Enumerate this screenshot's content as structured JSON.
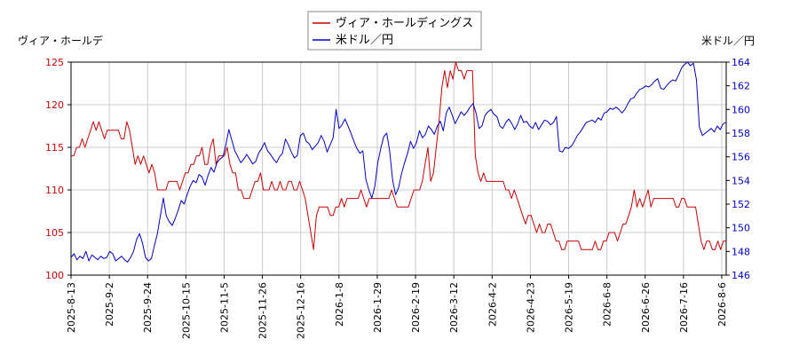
{
  "chart_data": {
    "type": "line",
    "left_axis_label": "ヴィア・ホールデ",
    "right_axis_label": "米ドル／円",
    "x_tick_labels": [
      "2025-8-13",
      "2025-9-2",
      "2025-9-24",
      "2025-10-15",
      "2025-11-5",
      "2025-11-26",
      "2025-12-16",
      "2026-1-8",
      "2026-1-29",
      "2026-2-19",
      "2026-3-12",
      "2026-4-2",
      "2026-4-23",
      "2026-5-19",
      "2026-6-8",
      "2026-6-26",
      "2026-7-16",
      "2026-8-6"
    ],
    "y_left": {
      "min": 100,
      "max": 125,
      "ticks": [
        100,
        105,
        110,
        115,
        120,
        125
      ]
    },
    "y_right": {
      "min": 146,
      "max": 164,
      "ticks": [
        146,
        148,
        150,
        152,
        154,
        156,
        158,
        160,
        162,
        164
      ]
    },
    "grid": true,
    "legend_position": "top-center",
    "series": [
      {
        "name": "ヴィア・ホールディングス",
        "color": "#cc0000",
        "axis": "left",
        "values": [
          114,
          114,
          115,
          115,
          116,
          115,
          116,
          117,
          118,
          117,
          118,
          117,
          116,
          117,
          117,
          117,
          117,
          117,
          116,
          116,
          118,
          117,
          115,
          113,
          114,
          113,
          114,
          113,
          112,
          113,
          112,
          110,
          110,
          110,
          110,
          111,
          111,
          111,
          111,
          110,
          111,
          112,
          112,
          113,
          113,
          114,
          114,
          115,
          113,
          113,
          115,
          116,
          113,
          114,
          114,
          114,
          115,
          113,
          112,
          112,
          110,
          110,
          109,
          109,
          109,
          110,
          111,
          111,
          112,
          110,
          110,
          110,
          111,
          110,
          110,
          111,
          110,
          110,
          111,
          111,
          110,
          110,
          111,
          110,
          109,
          107,
          105,
          103,
          107,
          108,
          108,
          108,
          108,
          107,
          107,
          108,
          108,
          109,
          108,
          109,
          109,
          109,
          109,
          109,
          110,
          109,
          108,
          109,
          109,
          109,
          109,
          109,
          109,
          109,
          109,
          110,
          109,
          108,
          108,
          108,
          108,
          108,
          109,
          110,
          110,
          110,
          111,
          113,
          115,
          111,
          112,
          115,
          118,
          122,
          124,
          122,
          124,
          123,
          125,
          124,
          124,
          123,
          124,
          124,
          124,
          114,
          112,
          111,
          112,
          111,
          111,
          111,
          111,
          111,
          111,
          111,
          110,
          110,
          109,
          110,
          109,
          108,
          107,
          106,
          107,
          107,
          106,
          105,
          106,
          105,
          105,
          106,
          106,
          105,
          104,
          104,
          103,
          103,
          104,
          104,
          104,
          104,
          104,
          103,
          103,
          103,
          103,
          103,
          104,
          103,
          103,
          104,
          104,
          105,
          105,
          105,
          104,
          105,
          106,
          106,
          107,
          108,
          110,
          108,
          109,
          108,
          109,
          110,
          108,
          109,
          109,
          109,
          109,
          109,
          109,
          109,
          109,
          108,
          108,
          109,
          109,
          108,
          108,
          108,
          108,
          106,
          104,
          103,
          104,
          104,
          103,
          103,
          104,
          103,
          104,
          104
        ]
      },
      {
        "name": "米ドル／円",
        "color": "#0000cc",
        "axis": "right",
        "values": [
          147.5,
          147.8,
          147.3,
          147.6,
          147.4,
          148.0,
          147.2,
          147.7,
          147.5,
          147.3,
          147.6,
          147.4,
          147.5,
          148.0,
          147.8,
          147.2,
          147.4,
          147.6,
          147.3,
          147.1,
          147.5,
          148.0,
          149.0,
          149.5,
          148.7,
          147.5,
          147.2,
          147.4,
          148.5,
          149.5,
          151.0,
          152.5,
          151.0,
          150.5,
          150.2,
          150.8,
          151.5,
          152.3,
          152.0,
          152.8,
          153.5,
          154.0,
          153.8,
          154.5,
          154.3,
          153.6,
          154.4,
          155.1,
          154.7,
          155.5,
          155.8,
          156.0,
          157.0,
          158.3,
          157.4,
          156.5,
          156.0,
          155.5,
          155.8,
          156.2,
          155.8,
          155.4,
          155.6,
          156.3,
          156.7,
          157.2,
          156.5,
          156.2,
          155.8,
          155.5,
          156.0,
          156.3,
          157.5,
          157.0,
          156.4,
          155.9,
          156.1,
          157.8,
          158.0,
          157.3,
          157.1,
          156.6,
          156.9,
          157.2,
          157.8,
          157.3,
          156.4,
          157.0,
          157.6,
          160.0,
          158.4,
          158.7,
          159.2,
          158.6,
          158.0,
          157.3,
          156.7,
          156.3,
          156.5,
          154.1,
          153.2,
          152.5,
          153.5,
          155.5,
          156.7,
          157.7,
          158.0,
          156.5,
          154.0,
          152.8,
          153.4,
          154.6,
          155.5,
          156.3,
          157.3,
          156.7,
          157.2,
          158.2,
          157.6,
          157.9,
          158.6,
          158.3,
          157.9,
          158.6,
          159.0,
          158.2,
          159.7,
          160.2,
          159.5,
          158.8,
          159.3,
          159.8,
          159.5,
          159.8,
          160.2,
          160.5,
          159.7,
          158.4,
          158.6,
          159.5,
          159.8,
          160.0,
          159.6,
          159.4,
          158.6,
          158.4,
          158.9,
          159.2,
          158.8,
          158.3,
          158.8,
          159.5,
          158.9,
          159.0,
          158.6,
          158.4,
          158.9,
          158.3,
          158.7,
          159.1,
          159.0,
          158.7,
          158.9,
          159.4,
          156.5,
          156.4,
          156.8,
          156.7,
          156.9,
          157.3,
          157.8,
          158.1,
          158.5,
          158.9,
          159.0,
          159.1,
          158.9,
          159.3,
          159.1,
          159.7,
          159.8,
          160.1,
          160.0,
          160.2,
          160.0,
          159.7,
          160.0,
          160.5,
          160.9,
          161.0,
          161.4,
          161.7,
          161.8,
          162.0,
          161.9,
          162.1,
          162.4,
          162.6,
          161.8,
          161.7,
          162.0,
          162.3,
          162.5,
          162.4,
          162.9,
          163.5,
          163.8,
          164.0,
          163.7,
          163.9,
          162.5,
          158.5,
          157.8,
          158.0,
          158.2,
          158.4,
          158.1,
          158.6,
          158.3,
          158.8,
          158.9
        ]
      }
    ]
  }
}
